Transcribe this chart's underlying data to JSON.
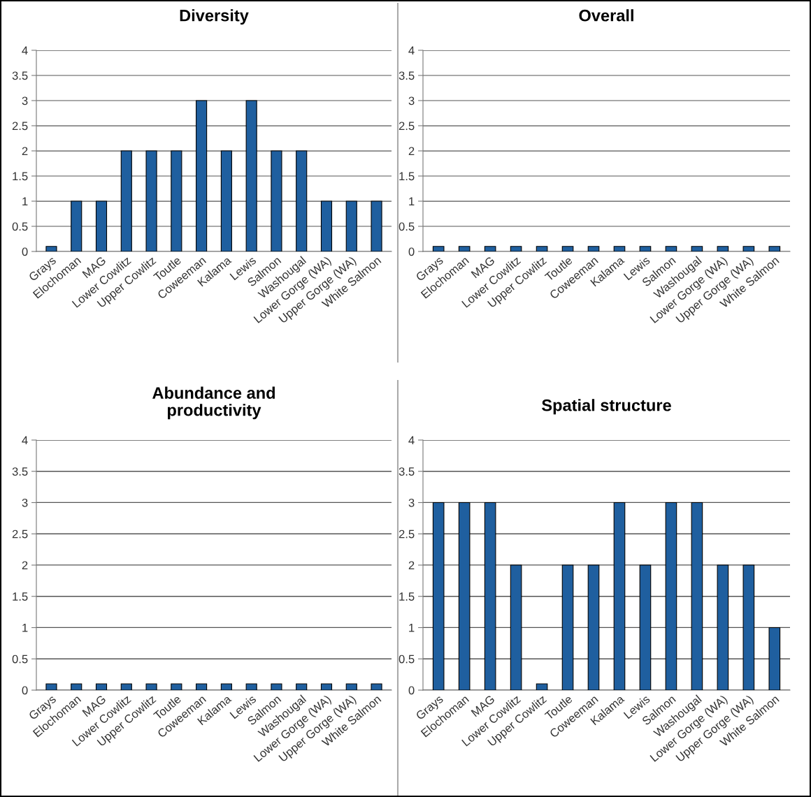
{
  "chart_data": [
    {
      "type": "bar",
      "title": "Diversity",
      "categories": [
        "Grays",
        "Elochoman",
        "MAG",
        "Lower Cowlitz",
        "Upper Cowlitz",
        "Toutle",
        "Coweeman",
        "Kalama",
        "Lewis",
        "Salmon",
        "Washougal",
        "Lower Gorge (WA)",
        "Upper Gorge (WA)",
        "White Salmon"
      ],
      "color": "#1f5f9f",
      "values": [
        0.1,
        1,
        1,
        2,
        2,
        2,
        3,
        2,
        3,
        2,
        2,
        1,
        1,
        1
      ],
      "ylim": [
        0,
        4
      ],
      "yticks": [
        0,
        0.5,
        1,
        1.5,
        2,
        2.5,
        3,
        3.5,
        4
      ],
      "grid": "y"
    },
    {
      "type": "bar",
      "title": "Overall",
      "categories": [
        "Grays",
        "Elochoman",
        "MAG",
        "Lower Cowlitz",
        "Upper Cowlitz",
        "Toutle",
        "Coweeman",
        "Kalama",
        "Lewis",
        "Salmon",
        "Washougal",
        "Lower Gorge (WA)",
        "Upper Gorge (WA)",
        "White Salmon"
      ],
      "color": "#1f5f9f",
      "values": [
        0.1,
        0.1,
        0.1,
        0.1,
        0.1,
        0.1,
        0.1,
        0.1,
        0.1,
        0.1,
        0.1,
        0.1,
        0.1,
        0.1
      ],
      "ylim": [
        0,
        4
      ],
      "yticks": [
        0,
        0.5,
        1,
        1.5,
        2,
        2.5,
        3,
        3.5,
        4
      ],
      "grid": "y"
    },
    {
      "type": "bar",
      "title": "Abundance and\nproductivity",
      "categories": [
        "Grays",
        "Elochoman",
        "MAG",
        "Lower Cowlitz",
        "Upper Cowlitz",
        "Toutle",
        "Coweeman",
        "Kalama",
        "Lewis",
        "Salmon",
        "Washougal",
        "Lower Gorge (WA)",
        "Upper Gorge (WA)",
        "White Salmon"
      ],
      "color": "#1f5f9f",
      "values": [
        0.1,
        0.1,
        0.1,
        0.1,
        0.1,
        0.1,
        0.1,
        0.1,
        0.1,
        0.1,
        0.1,
        0.1,
        0.1,
        0.1
      ],
      "ylim": [
        0,
        4
      ],
      "yticks": [
        0,
        0.5,
        1,
        1.5,
        2,
        2.5,
        3,
        3.5,
        4
      ],
      "grid": "y"
    },
    {
      "type": "bar",
      "title": "Spatial structure",
      "categories": [
        "Grays",
        "Elochoman",
        "MAG",
        "Lower Cowlitz",
        "Upper Cowlitz",
        "Toutle",
        "Coweeman",
        "Kalama",
        "Lewis",
        "Salmon",
        "Washougal",
        "Lower Gorge (WA)",
        "Upper Gorge (WA)",
        "White Salmon"
      ],
      "color": "#1f5f9f",
      "values": [
        3,
        3,
        3,
        2,
        0.1,
        2,
        2,
        3,
        2,
        3,
        3,
        2,
        2,
        1
      ],
      "ylim": [
        0,
        4
      ],
      "yticks": [
        0,
        0.5,
        1,
        1.5,
        2,
        2.5,
        3,
        3.5,
        4
      ],
      "grid": "y"
    }
  ]
}
